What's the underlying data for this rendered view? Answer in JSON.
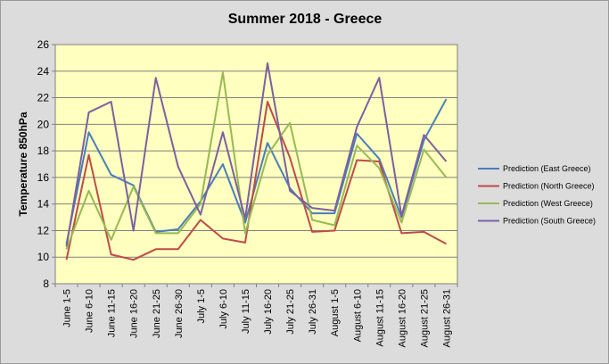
{
  "chart_data": {
    "type": "line",
    "title": "Summer 2018 - Greece",
    "xlabel": "",
    "ylabel": "Temperature 850hPa",
    "ylim": [
      8,
      26
    ],
    "ytick_step": 2,
    "grid": "horizontal",
    "legend_position": "right",
    "plot_bg": "#ffffc0",
    "frame_bg": "#dcdcdc",
    "categories": [
      "June 1-5",
      "June 6-10",
      "June 11-15",
      "June 16-20",
      "June 21-25",
      "June 26-30",
      "July 1-5",
      "July 6-10",
      "July 11-15",
      "July 16-20",
      "July 21-25",
      "July 26-31",
      "August 1-5",
      "August 6-10",
      "August 11-15",
      "August 16-20",
      "August 21-25",
      "August 26-31"
    ],
    "series": [
      {
        "name": "Prediction (East Greece)",
        "color": "#4a7ebb",
        "values": [
          11.0,
          19.4,
          16.2,
          15.4,
          11.9,
          12.1,
          14.2,
          17.0,
          12.6,
          18.6,
          15.2,
          13.3,
          13.3,
          19.3,
          17.4,
          13.0,
          18.8,
          21.9
        ]
      },
      {
        "name": "Prediction (North Greece)",
        "color": "#be4b48",
        "values": [
          9.8,
          17.7,
          10.2,
          9.8,
          10.6,
          10.6,
          12.8,
          11.4,
          11.1,
          21.7,
          17.5,
          11.9,
          12.0,
          17.3,
          17.2,
          11.8,
          11.9,
          11.0
        ]
      },
      {
        "name": "Prediction (West Greece)",
        "color": "#98b954",
        "values": [
          10.6,
          15.0,
          11.3,
          15.3,
          11.8,
          11.8,
          14.0,
          23.9,
          11.8,
          17.7,
          20.1,
          12.8,
          12.4,
          18.4,
          16.7,
          12.6,
          18.1,
          16.0
        ]
      },
      {
        "name": "Prediction (South Greece)",
        "color": "#7d60a0",
        "values": [
          10.8,
          20.9,
          21.7,
          12.0,
          23.5,
          16.8,
          13.2,
          19.4,
          12.9,
          24.6,
          15.0,
          13.7,
          13.5,
          19.8,
          23.5,
          13.1,
          19.2,
          17.2
        ]
      }
    ]
  }
}
